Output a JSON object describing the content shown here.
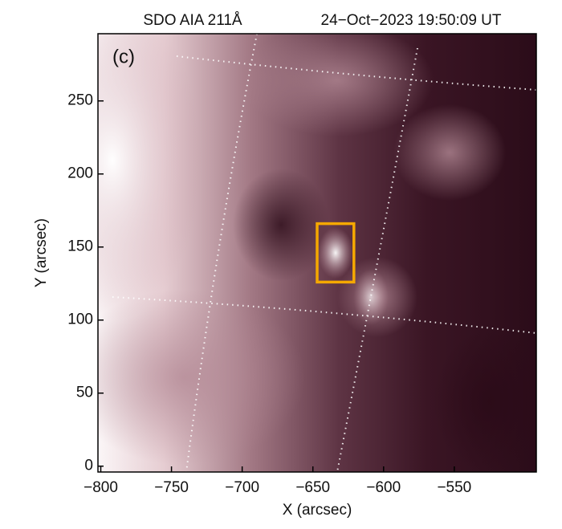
{
  "chart_data": {
    "type": "image",
    "title": "SDO AIA 211Å",
    "subtitle": "24−Oct−2023 19:50:09 UT",
    "panel_label": "(c)",
    "x_label": "X (arcsec)",
    "y_label": "Y (arcsec)",
    "xlim": [
      -802,
      -492
    ],
    "ylim": [
      -4,
      296
    ],
    "xticks": [
      {
        "value": -800,
        "label": "−800"
      },
      {
        "value": -750,
        "label": "−750"
      },
      {
        "value": -700,
        "label": "−700"
      },
      {
        "value": -650,
        "label": "−650"
      },
      {
        "value": -600,
        "label": "−600"
      },
      {
        "value": -550,
        "label": "−550"
      }
    ],
    "yticks": [
      0,
      50,
      100,
      150,
      200,
      250
    ],
    "box": {
      "x": [
        -647,
        -621
      ],
      "y": [
        126,
        166
      ],
      "color": "#f5a800"
    }
  }
}
